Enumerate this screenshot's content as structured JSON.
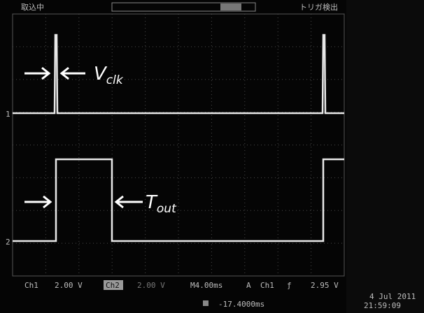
{
  "status": {
    "acquisition": "取込中",
    "trigger": "トリガ検出"
  },
  "annotations": {
    "clock": {
      "symbol": "V",
      "subscript": "clk"
    },
    "output": {
      "symbol": "T",
      "subscript": "out"
    }
  },
  "channel_markers": [
    "1",
    "2"
  ],
  "readout": {
    "ch1_label": "Ch1",
    "ch1_scale": "2.00 V",
    "ch2_label": "Ch2",
    "ch2_scale": "2.00 V",
    "timebase": "M4.00ms",
    "trigger_mode": "A",
    "trigger_source": "Ch1",
    "trigger_slope": "ƒ",
    "trigger_level": "2.95 V",
    "position": "-17.4000ms",
    "date": "4 Jul 2011",
    "time": "21:59:09"
  }
}
